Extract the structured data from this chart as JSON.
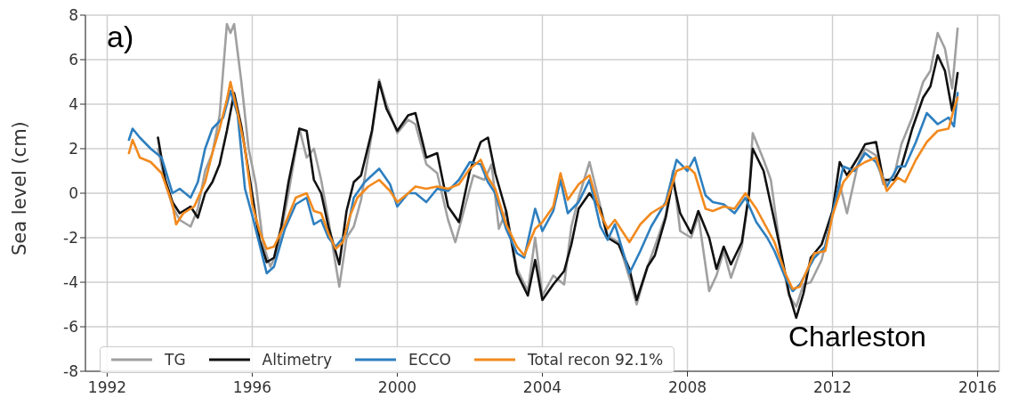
{
  "chart_data": {
    "type": "line",
    "ylabel": "Sea level (cm)",
    "annotations": [
      "a)",
      "Charleston"
    ],
    "xlim": [
      1991.4,
      2016.6
    ],
    "xticks": [
      1992,
      1996,
      2000,
      2004,
      2008,
      2012,
      2016
    ],
    "ylim": [
      -8,
      8
    ],
    "yticks": [
      -8,
      -6,
      -4,
      -2,
      0,
      2,
      4,
      6,
      8
    ],
    "grid": true,
    "legend": "bottom left",
    "marker": "none",
    "line_style": "solid",
    "series": [
      {
        "name": "TG",
        "color": "#a0a0a0",
        "x": [
          1993.4,
          1993.6,
          1993.8,
          1994.0,
          1994.3,
          1994.5,
          1994.7,
          1994.9,
          1995.1,
          1995.3,
          1995.4,
          1995.5,
          1995.7,
          1995.9,
          1996.1,
          1996.3,
          1996.5,
          1996.7,
          1997.0,
          1997.3,
          1997.5,
          1997.7,
          1997.9,
          1998.1,
          1998.4,
          1998.6,
          1998.8,
          1999.0,
          1999.3,
          1999.5,
          1999.7,
          2000.0,
          2000.3,
          2000.5,
          2000.8,
          2001.1,
          2001.4,
          2001.6,
          2001.8,
          2002.1,
          2002.4,
          2002.6,
          2002.8,
          2003.0,
          2003.3,
          2003.6,
          2003.8,
          2004.0,
          2004.3,
          2004.6,
          2004.8,
          2005.0,
          2005.3,
          2005.6,
          2005.8,
          2006.1,
          2006.4,
          2006.6,
          2006.9,
          2007.1,
          2007.4,
          2007.6,
          2007.8,
          2008.1,
          2008.3,
          2008.6,
          2008.8,
          2009.0,
          2009.2,
          2009.5,
          2009.7,
          2009.8,
          2010.1,
          2010.3,
          2010.6,
          2010.8,
          2011.0,
          2011.2,
          2011.4,
          2011.7,
          2012.0,
          2012.2,
          2012.4,
          2012.7,
          2012.9,
          2013.2,
          2013.4,
          2013.7,
          2013.9,
          2014.2,
          2014.5,
          2014.7,
          2014.9,
          2015.1,
          2015.3,
          2015.45
        ],
        "values": [
          2.0,
          0.5,
          -0.6,
          -1.2,
          -1.5,
          -0.7,
          1.0,
          1.8,
          3.5,
          7.6,
          7.2,
          7.6,
          5.0,
          2.0,
          0.4,
          -2.3,
          -3.3,
          -2.6,
          0.0,
          2.9,
          1.6,
          2.0,
          0.6,
          -1.2,
          -4.2,
          -2.0,
          -1.5,
          -0.3,
          2.7,
          5.1,
          4.0,
          2.7,
          3.3,
          3.1,
          1.3,
          0.9,
          -1.2,
          -2.2,
          -1.0,
          0.8,
          0.6,
          1.3,
          -1.6,
          -0.8,
          -3.4,
          -4.4,
          -2.0,
          -4.6,
          -3.7,
          -4.1,
          -1.5,
          -0.2,
          1.4,
          -0.6,
          -1.9,
          -2.2,
          -3.8,
          -5.0,
          -3.3,
          -2.4,
          -1.0,
          1.0,
          -1.7,
          -2.0,
          -1.0,
          -4.4,
          -3.7,
          -2.6,
          -3.8,
          -2.4,
          0.0,
          2.7,
          1.5,
          0.6,
          -3.0,
          -4.6,
          -5.1,
          -4.1,
          -4.0,
          -3.0,
          -1.0,
          0.4,
          -0.9,
          1.3,
          2.0,
          1.7,
          0.4,
          0.8,
          2.2,
          3.4,
          5.0,
          5.5,
          7.2,
          6.5,
          4.7,
          7.4
        ]
      },
      {
        "name": "Altimetry",
        "color": "#111111",
        "x": [
          1993.4,
          1993.6,
          1993.8,
          1994.0,
          1994.3,
          1994.5,
          1994.7,
          1994.9,
          1995.1,
          1995.3,
          1995.5,
          1995.7,
          1996.2,
          1996.4,
          1996.6,
          1996.8,
          1997.0,
          1997.3,
          1997.5,
          1997.7,
          1997.9,
          1998.1,
          1998.4,
          1998.6,
          1998.8,
          1999.0,
          1999.3,
          1999.5,
          1999.7,
          2000.0,
          2000.3,
          2000.5,
          2000.8,
          2001.1,
          2001.4,
          2001.7,
          2002.0,
          2002.3,
          2002.5,
          2002.7,
          2003.0,
          2003.3,
          2003.6,
          2003.8,
          2004.0,
          2004.3,
          2004.6,
          2004.8,
          2005.0,
          2005.3,
          2005.6,
          2005.8,
          2006.1,
          2006.4,
          2006.6,
          2006.9,
          2007.1,
          2007.4,
          2007.6,
          2007.8,
          2008.1,
          2008.3,
          2008.6,
          2008.8,
          2009.0,
          2009.2,
          2009.5,
          2009.7,
          2009.8,
          2010.1,
          2010.3,
          2010.6,
          2010.8,
          2011.0,
          2011.2,
          2011.4,
          2011.7,
          2012.0,
          2012.2,
          2012.4,
          2012.7,
          2012.9,
          2013.2,
          2013.4,
          2013.7,
          2013.9,
          2014.2,
          2014.5,
          2014.7,
          2014.9,
          2015.1,
          2015.3,
          2015.45
        ],
        "values": [
          2.5,
          0.6,
          -0.4,
          -0.9,
          -0.6,
          -1.1,
          0.0,
          0.5,
          1.3,
          2.8,
          4.5,
          3.0,
          -2.1,
          -3.1,
          -2.9,
          -1.5,
          0.5,
          2.9,
          2.8,
          0.6,
          0.0,
          -1.5,
          -3.2,
          -0.8,
          0.5,
          0.8,
          2.8,
          5.0,
          3.8,
          2.8,
          3.5,
          3.6,
          1.6,
          1.8,
          -0.6,
          -1.3,
          1.0,
          2.3,
          2.5,
          0.9,
          -0.8,
          -3.6,
          -4.6,
          -3.0,
          -4.8,
          -4.1,
          -3.5,
          -2.3,
          -0.7,
          0.0,
          -0.7,
          -2.0,
          -2.3,
          -3.4,
          -4.8,
          -3.3,
          -2.8,
          -1.1,
          0.6,
          -0.9,
          -1.8,
          -0.8,
          -2.0,
          -3.4,
          -2.4,
          -3.2,
          -2.2,
          0.0,
          2.0,
          1.0,
          -0.5,
          -2.8,
          -4.5,
          -5.6,
          -4.5,
          -2.9,
          -2.3,
          -0.8,
          1.4,
          0.8,
          1.6,
          2.2,
          2.3,
          0.6,
          0.6,
          1.2,
          2.9,
          4.3,
          4.8,
          6.2,
          5.5,
          3.7,
          5.4
        ]
      },
      {
        "name": "ECCO",
        "color": "#2e7fbf",
        "x": [
          1992.6,
          1992.7,
          1992.9,
          1993.2,
          1993.5,
          1993.8,
          1994.0,
          1994.3,
          1994.5,
          1994.7,
          1994.9,
          1995.2,
          1995.4,
          1995.6,
          1995.8,
          1996.0,
          1996.2,
          1996.4,
          1996.6,
          1996.9,
          1997.2,
          1997.5,
          1997.7,
          1997.9,
          1998.1,
          1998.3,
          1998.6,
          1998.8,
          1999.1,
          1999.3,
          1999.5,
          1999.8,
          2000.0,
          2000.3,
          2000.5,
          2000.8,
          2001.1,
          2001.4,
          2001.7,
          2002.0,
          2002.3,
          2002.5,
          2002.7,
          2003.0,
          2003.3,
          2003.5,
          2003.8,
          2004.0,
          2004.3,
          2004.5,
          2004.7,
          2005.0,
          2005.3,
          2005.6,
          2005.8,
          2006.0,
          2006.4,
          2006.7,
          2007.0,
          2007.4,
          2007.7,
          2008.0,
          2008.2,
          2008.5,
          2008.7,
          2009.0,
          2009.3,
          2009.6,
          2009.9,
          2010.2,
          2010.4,
          2010.7,
          2010.9,
          2011.1,
          2011.5,
          2011.8,
          2012.0,
          2012.3,
          2012.6,
          2012.9,
          2013.2,
          2013.5,
          2013.8,
          2014.0,
          2014.3,
          2014.6,
          2014.9,
          2015.2,
          2015.35,
          2015.45
        ],
        "values": [
          2.4,
          2.9,
          2.5,
          2.0,
          1.6,
          0.0,
          0.2,
          -0.2,
          0.5,
          2.0,
          2.9,
          3.4,
          4.6,
          3.5,
          0.2,
          -1.0,
          -2.3,
          -3.6,
          -3.3,
          -1.6,
          -0.5,
          -0.2,
          -1.4,
          -1.2,
          -2.0,
          -2.4,
          -1.8,
          -0.2,
          0.5,
          0.8,
          1.1,
          0.4,
          -0.6,
          0.0,
          0.0,
          -0.4,
          0.2,
          0.1,
          0.6,
          1.4,
          1.3,
          0.5,
          0.0,
          -1.6,
          -2.7,
          -2.9,
          -0.7,
          -1.7,
          -0.8,
          0.6,
          -0.9,
          -0.4,
          0.6,
          -1.5,
          -2.1,
          -1.4,
          -3.6,
          -2.6,
          -1.5,
          -0.4,
          1.5,
          1.0,
          1.6,
          -0.1,
          -0.4,
          -0.5,
          -0.9,
          -0.2,
          -1.3,
          -2.0,
          -2.6,
          -3.8,
          -4.4,
          -4.1,
          -2.9,
          -2.4,
          -0.9,
          1.2,
          1.0,
          1.8,
          1.4,
          0.3,
          1.2,
          1.2,
          2.3,
          3.6,
          3.1,
          3.4,
          3.0,
          4.5
        ]
      },
      {
        "name": "Total recon 92.1%",
        "color": "#f28a1e",
        "x": [
          1992.6,
          1992.7,
          1992.9,
          1993.2,
          1993.5,
          1993.8,
          1993.9,
          1994.1,
          1994.4,
          1994.7,
          1994.9,
          1995.1,
          1995.3,
          1995.4,
          1995.6,
          1995.8,
          1996.0,
          1996.2,
          1996.4,
          1996.6,
          1996.9,
          1997.2,
          1997.5,
          1997.7,
          1997.9,
          1998.1,
          1998.3,
          1998.5,
          1998.7,
          1998.9,
          1999.2,
          1999.5,
          1999.8,
          2000.0,
          2000.3,
          2000.5,
          2000.8,
          2001.1,
          2001.4,
          2001.7,
          2002.0,
          2002.3,
          2002.5,
          2002.7,
          2003.0,
          2003.3,
          2003.5,
          2003.8,
          2004.0,
          2004.3,
          2004.5,
          2004.7,
          2005.0,
          2005.3,
          2005.6,
          2005.8,
          2006.0,
          2006.4,
          2006.7,
          2007.0,
          2007.4,
          2007.7,
          2008.0,
          2008.2,
          2008.5,
          2008.7,
          2009.0,
          2009.3,
          2009.6,
          2009.9,
          2010.2,
          2010.4,
          2010.7,
          2010.9,
          2011.1,
          2011.5,
          2011.8,
          2012.0,
          2012.3,
          2012.6,
          2012.9,
          2013.2,
          2013.5,
          2013.8,
          2014.0,
          2014.3,
          2014.6,
          2014.9,
          2015.2,
          2015.35,
          2015.45
        ],
        "values": [
          1.8,
          2.4,
          1.6,
          1.4,
          0.9,
          -0.5,
          -1.4,
          -0.9,
          -0.6,
          0.5,
          1.8,
          2.9,
          4.2,
          5.0,
          3.6,
          2.0,
          -0.5,
          -1.7,
          -2.5,
          -2.4,
          -1.4,
          -0.2,
          0.0,
          -0.8,
          -0.9,
          -1.8,
          -2.5,
          -2.2,
          -1.0,
          -0.2,
          0.3,
          0.6,
          0.1,
          -0.4,
          0.0,
          0.3,
          0.2,
          0.3,
          0.2,
          0.4,
          1.1,
          1.5,
          0.7,
          0.2,
          -1.4,
          -2.4,
          -2.8,
          -1.6,
          -1.3,
          -0.6,
          0.9,
          -0.3,
          0.4,
          0.8,
          -0.9,
          -1.6,
          -1.2,
          -2.2,
          -1.4,
          -0.9,
          -0.5,
          1.0,
          1.2,
          0.9,
          -0.7,
          -0.8,
          -0.6,
          -0.7,
          0.0,
          -0.7,
          -1.6,
          -2.2,
          -3.6,
          -4.3,
          -4.2,
          -2.7,
          -2.6,
          -1.0,
          0.5,
          1.1,
          1.4,
          1.6,
          0.1,
          0.7,
          0.5,
          1.5,
          2.3,
          2.8,
          2.9,
          3.8,
          4.3
        ]
      }
    ]
  }
}
